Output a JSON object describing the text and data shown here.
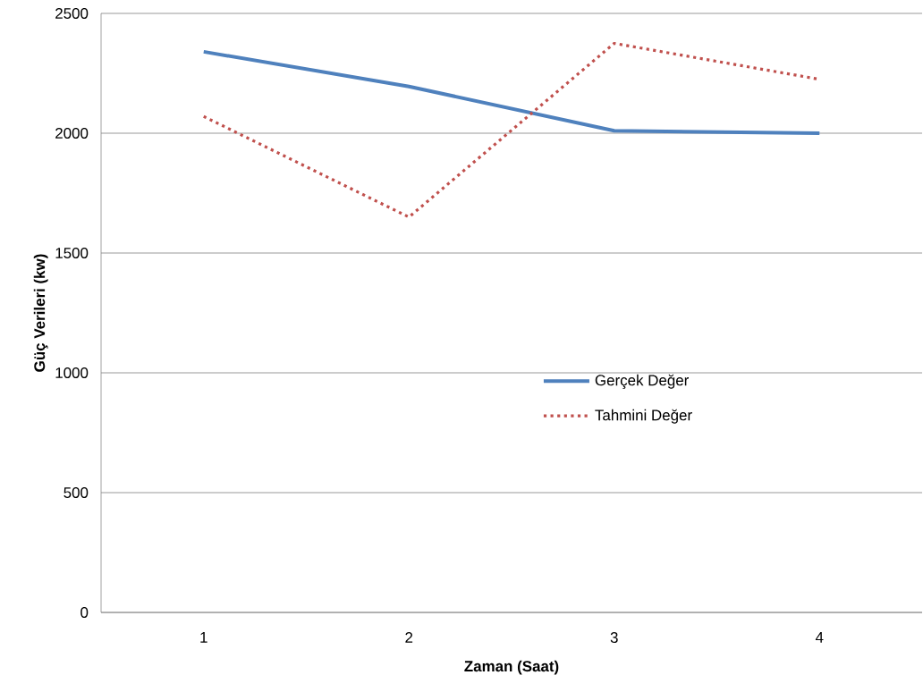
{
  "chart_data": {
    "type": "line",
    "xlabel": "Zaman (Saat)",
    "ylabel": "Güç Verileri (kw)",
    "categories": [
      "1",
      "2",
      "3",
      "4"
    ],
    "series": [
      {
        "name": "Gerçek Değer",
        "color": "#4f81bd",
        "line_style": "solid",
        "values": [
          2340,
          2195,
          2010,
          2000
        ]
      },
      {
        "name": "Tahmini Değer",
        "color": "#c0504d",
        "line_style": "dotted",
        "values": [
          2070,
          1650,
          2375,
          2225
        ]
      }
    ],
    "ylim": [
      0,
      2500
    ],
    "yticks": [
      0,
      500,
      1000,
      1500,
      2000,
      2500
    ],
    "grid": "y",
    "legend": "right"
  }
}
